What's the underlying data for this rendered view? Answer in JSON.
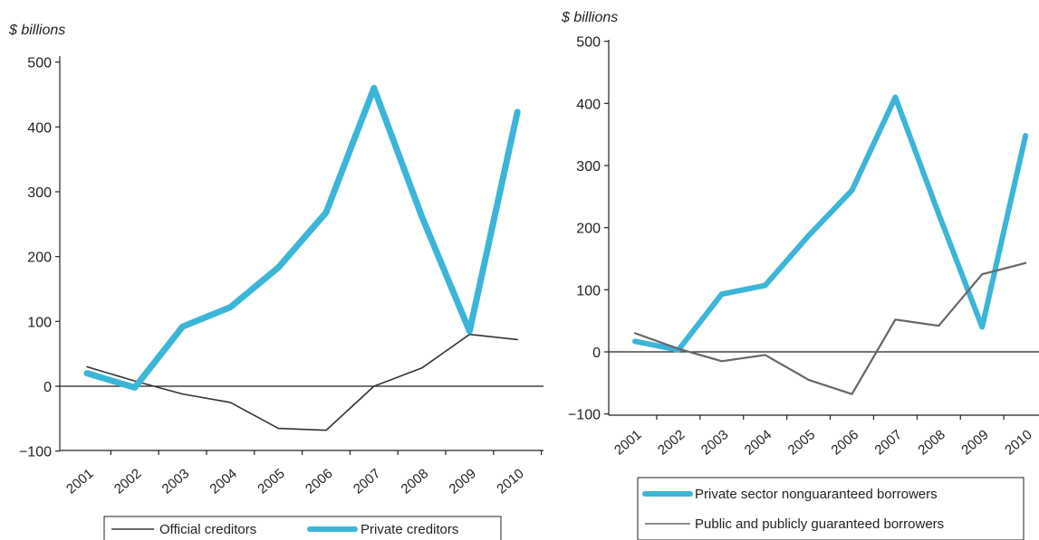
{
  "colors": {
    "private": "#3bb5d8",
    "official_left": "#333333",
    "official_right": "#666666",
    "axis": "#222222"
  },
  "chart_data": [
    {
      "type": "line",
      "unit_label": "$ billions",
      "x": [
        "2001",
        "2002",
        "2003",
        "2004",
        "2005",
        "2006",
        "2007",
        "2008",
        "2009",
        "2010"
      ],
      "ylim": [
        -100,
        500
      ],
      "yticks": [
        -100,
        0,
        100,
        200,
        300,
        400,
        500
      ],
      "series": [
        {
          "name": "Official creditors",
          "values": [
            30,
            8,
            -12,
            -25,
            -65,
            -68,
            0,
            28,
            80,
            72
          ]
        },
        {
          "name": "Private creditors",
          "values": [
            20,
            -2,
            92,
            122,
            183,
            268,
            460,
            262,
            85,
            423
          ]
        }
      ],
      "legend": {
        "position": "bottom",
        "items": [
          "Official creditors",
          "Private creditors"
        ]
      }
    },
    {
      "type": "line",
      "unit_label": "$ billions",
      "x": [
        "2001",
        "2002",
        "2003",
        "2004",
        "2005",
        "2006",
        "2007",
        "2008",
        "2009",
        "2010"
      ],
      "ylim": [
        -100,
        500
      ],
      "yticks": [
        -100,
        0,
        100,
        200,
        300,
        400,
        500
      ],
      "series": [
        {
          "name": "Private sector nonguaranteed borrowers",
          "values": [
            17,
            3,
            93,
            107,
            187,
            260,
            410,
            222,
            40,
            348
          ]
        },
        {
          "name": "Public and publicly guaranteed borrowers",
          "values": [
            30,
            5,
            -15,
            -5,
            -45,
            -68,
            52,
            42,
            125,
            143
          ]
        }
      ],
      "legend": {
        "position": "bottom",
        "items": [
          "Private sector nonguaranteed borrowers",
          "Public and publicly guaranteed borrowers"
        ]
      }
    }
  ]
}
